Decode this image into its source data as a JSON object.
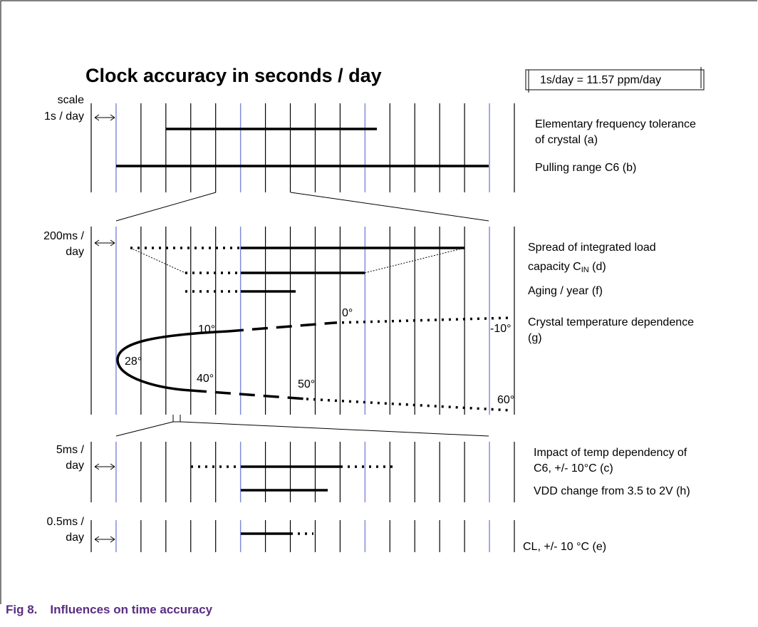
{
  "title": "Clock accuracy in seconds / day",
  "note": "1s/day = 11.57 ppm/day",
  "sections": [
    {
      "scale": [
        "scale",
        "1s  / day"
      ],
      "labels": [
        "Elementary frequency tolerance",
        "of crystal (a)",
        "Pulling range  C6 (b)"
      ]
    },
    {
      "scale": [
        "200ms /",
        "day"
      ],
      "labels": [
        "Spread of integrated load",
        "capacity C",
        "IN",
        " (d)",
        "Aging / year (f)",
        "Crystal temperature dependence",
        "(g)"
      ]
    },
    {
      "scale": [
        "5ms  /",
        "day"
      ],
      "labels": [
        "Impact of temp dependency of",
        "C6, +/- 10°C (c)",
        "VDD change from 3.5 to 2V (h)"
      ]
    },
    {
      "scale": [
        "0.5ms /",
        "day"
      ],
      "labels": [
        "CL, +/- 10 °C (e)"
      ]
    }
  ],
  "temperatures": [
    "28°",
    "10°",
    "0°",
    "-10°",
    "40°",
    "50°",
    "60°"
  ],
  "caption": {
    "number": "Fig 8.",
    "text": "Influences on time accuracy"
  }
}
